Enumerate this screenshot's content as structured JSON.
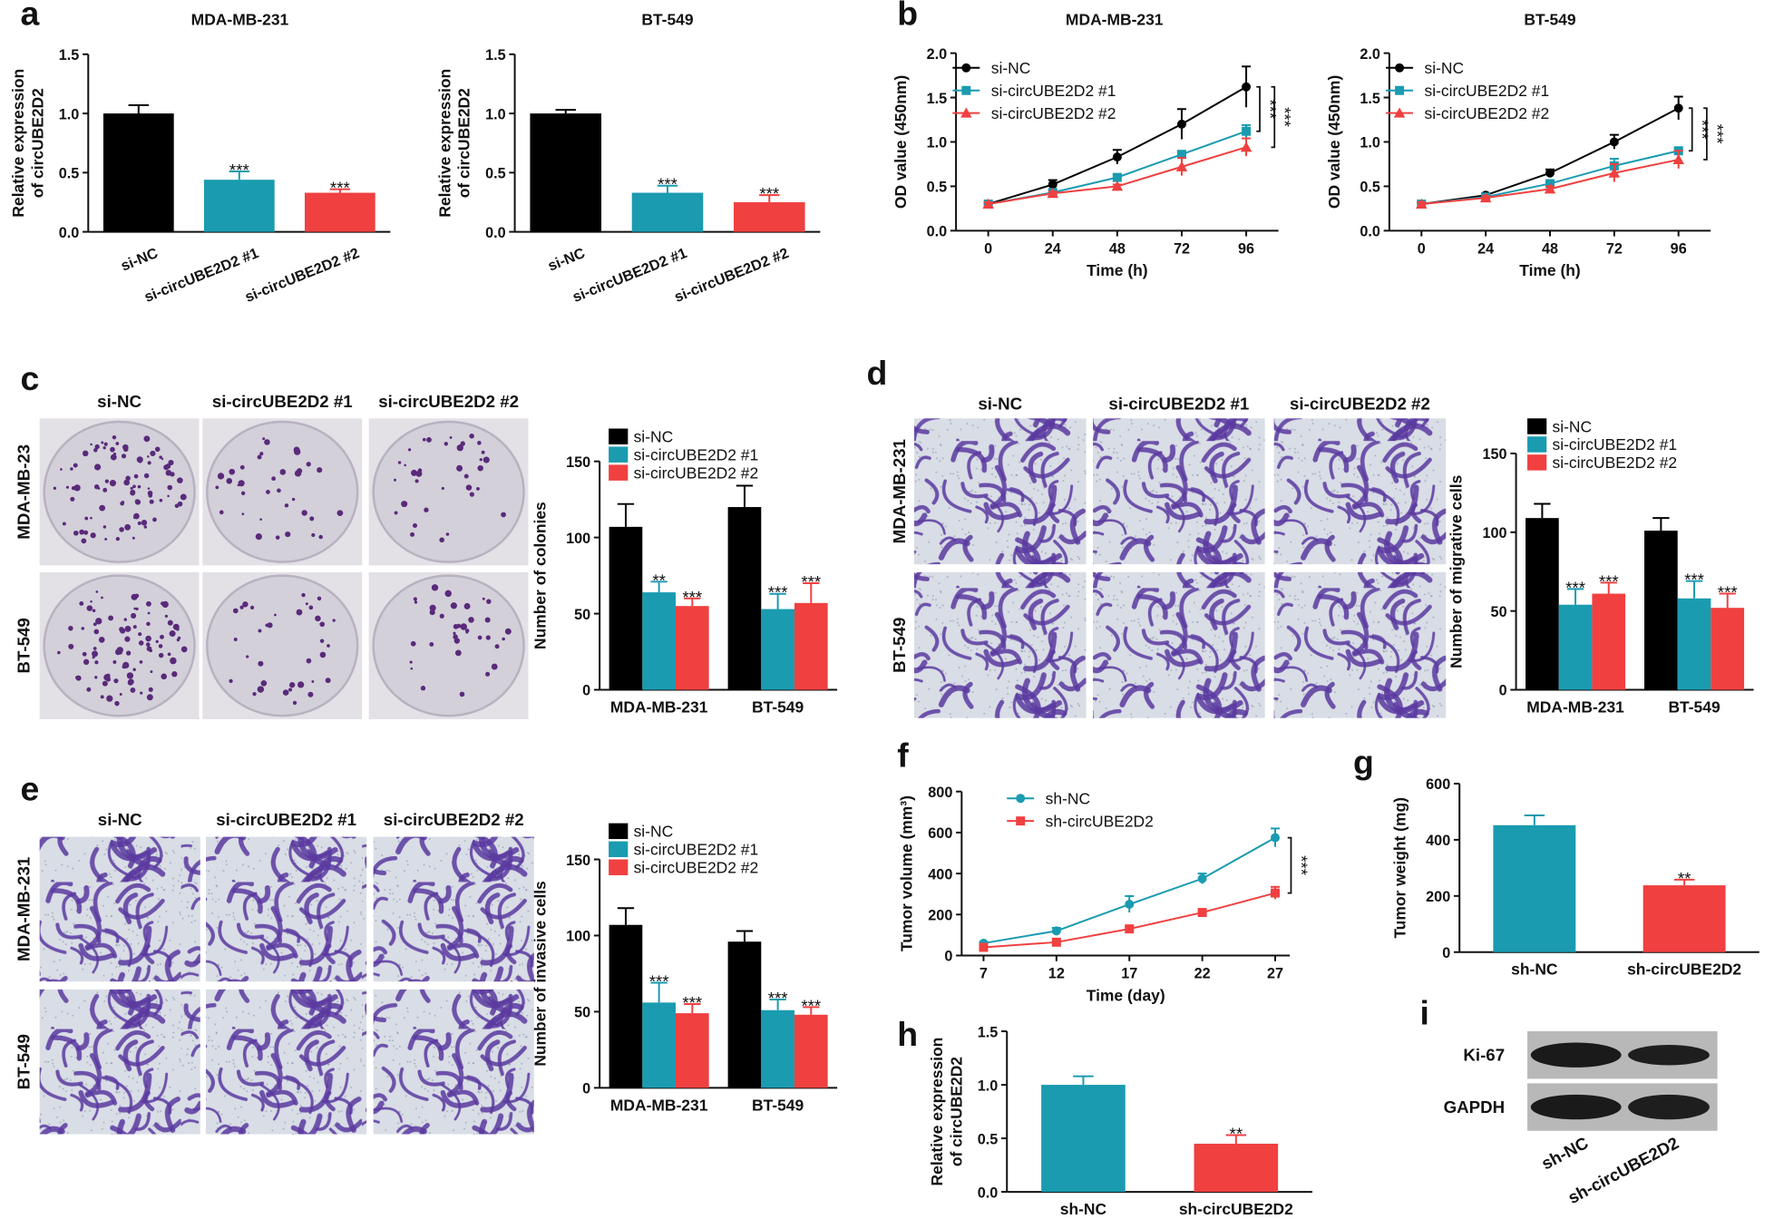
{
  "chart_data": [
    {
      "type": "bar",
      "title": "MDA-MB-231",
      "ylabel": [
        "Relative expression",
        "of circUBE2D2"
      ],
      "categories": [
        "si-NC",
        "si-circUBE2D2 #1",
        "si-circUBE2D2 #2"
      ],
      "values": [
        1.0,
        0.44,
        0.33
      ],
      "errors": [
        0.07,
        0.07,
        0.03
      ],
      "colors": [
        "#000000",
        "#1a9bb0",
        "#f04040"
      ],
      "significance": [
        null,
        "***",
        "***"
      ],
      "ylim": [
        0,
        1.5
      ],
      "yticks": [
        {
          "value": 0,
          "label": "0.0"
        },
        0.5,
        {
          "value": 1,
          "label": "1.0"
        },
        1.5
      ]
    },
    {
      "type": "bar",
      "title": "BT-549",
      "ylabel": [
        "Relative expression",
        "of circUBE2D2"
      ],
      "categories": [
        "si-NC",
        "si-circUBE2D2 #1",
        "si-circUBE2D2 #2"
      ],
      "values": [
        1.0,
        0.33,
        0.25
      ],
      "errors": [
        0.03,
        0.06,
        0.06
      ],
      "colors": [
        "#000000",
        "#1a9bb0",
        "#f04040"
      ],
      "significance": [
        null,
        "***",
        "***"
      ],
      "ylim": [
        0,
        1.5
      ],
      "yticks": [
        {
          "value": 0,
          "label": "0.0"
        },
        0.5,
        {
          "value": 1,
          "label": "1.0"
        },
        1.5
      ]
    },
    {
      "type": "line",
      "title": "MDA-MB-231",
      "xlabel": "Time (h)",
      "ylabel": "OD value (450nm)",
      "x": [
        0,
        24,
        48,
        72,
        96
      ],
      "xlim": [
        -12,
        108
      ],
      "xticks": [
        0,
        24,
        48,
        72,
        96
      ],
      "ylim": [
        0,
        2
      ],
      "yticks": [
        {
          "value": 0,
          "label": "0.0"
        },
        0.5,
        {
          "value": 1,
          "label": "1.0"
        },
        1.5,
        {
          "value": 2,
          "label": "2.0"
        }
      ],
      "series": [
        {
          "name": "si-NC",
          "color": "#000000",
          "marker": "circle",
          "values": [
            0.3,
            0.52,
            0.83,
            1.2,
            1.62
          ],
          "errors": [
            0.02,
            0.05,
            0.08,
            0.17,
            0.23
          ]
        },
        {
          "name": "si-circUBE2D2 #1",
          "color": "#1a9bb0",
          "marker": "square",
          "values": [
            0.3,
            0.43,
            0.6,
            0.86,
            1.12
          ],
          "errors": [
            0.02,
            0.03,
            0.03,
            0.03,
            0.07
          ]
        },
        {
          "name": "si-circUBE2D2 #2",
          "color": "#f04040",
          "marker": "triangle",
          "values": [
            0.3,
            0.42,
            0.5,
            0.72,
            0.94
          ],
          "errors": [
            0.02,
            0.02,
            0.02,
            0.1,
            0.1
          ]
        }
      ],
      "annotations": [
        "***",
        "***"
      ]
    },
    {
      "type": "line",
      "title": "BT-549",
      "xlabel": "Time (h)",
      "ylabel": "OD value (450nm)",
      "x": [
        0,
        24,
        48,
        72,
        96
      ],
      "xlim": [
        -12,
        108
      ],
      "xticks": [
        0,
        24,
        48,
        72,
        96
      ],
      "ylim": [
        0,
        2
      ],
      "yticks": [
        {
          "value": 0,
          "label": "0.0"
        },
        0.5,
        {
          "value": 1,
          "label": "1.0"
        },
        1.5,
        {
          "value": 2,
          "label": "2.0"
        }
      ],
      "series": [
        {
          "name": "si-NC",
          "color": "#000000",
          "marker": "circle",
          "values": [
            0.3,
            0.4,
            0.65,
            1.0,
            1.38
          ],
          "errors": [
            0.02,
            0.02,
            0.04,
            0.08,
            0.13
          ]
        },
        {
          "name": "si-circUBE2D2 #1",
          "color": "#1a9bb0",
          "marker": "square",
          "values": [
            0.3,
            0.38,
            0.53,
            0.73,
            0.9
          ],
          "errors": [
            0.02,
            0.02,
            0.03,
            0.08,
            0.03
          ]
        },
        {
          "name": "si-circUBE2D2 #2",
          "color": "#f04040",
          "marker": "triangle",
          "values": [
            0.3,
            0.37,
            0.47,
            0.65,
            0.8
          ],
          "errors": [
            0.02,
            0.02,
            0.03,
            0.1,
            0.1
          ]
        }
      ],
      "annotations": [
        "***",
        "***"
      ]
    },
    {
      "type": "bar",
      "ylabel": [
        "Number of colonies"
      ],
      "categories": [
        "MDA-MB-231",
        "BT-549"
      ],
      "ylim": [
        0,
        150
      ],
      "yticks": [
        0,
        50,
        100,
        150
      ],
      "series": [
        {
          "name": "si-NC",
          "color": "#000000",
          "values": [
            107,
            120
          ],
          "errors": [
            15,
            14
          ],
          "significance": [
            null,
            null
          ]
        },
        {
          "name": "si-circUBE2D2 #1",
          "color": "#1a9bb0",
          "values": [
            64,
            53
          ],
          "errors": [
            7,
            10
          ],
          "significance": [
            "**",
            "***"
          ]
        },
        {
          "name": "si-circUBE2D2 #2",
          "color": "#f04040",
          "values": [
            55,
            57
          ],
          "errors": [
            5,
            13
          ],
          "significance": [
            "***",
            "***"
          ]
        }
      ]
    },
    {
      "type": "bar",
      "ylabel": [
        "Number of migrative cells"
      ],
      "categories": [
        "MDA-MB-231",
        "BT-549"
      ],
      "ylim": [
        0,
        150
      ],
      "yticks": [
        0,
        50,
        100,
        150
      ],
      "series": [
        {
          "name": "si-NC",
          "color": "#000000",
          "values": [
            109,
            101
          ],
          "errors": [
            9,
            8
          ],
          "significance": [
            null,
            null
          ]
        },
        {
          "name": "si-circUBE2D2 #1",
          "color": "#1a9bb0",
          "values": [
            54,
            58
          ],
          "errors": [
            10,
            11
          ],
          "significance": [
            "***",
            "***"
          ]
        },
        {
          "name": "si-circUBE2D2 #2",
          "color": "#f04040",
          "values": [
            61,
            52
          ],
          "errors": [
            7,
            9
          ],
          "significance": [
            "***",
            "***"
          ]
        }
      ]
    },
    {
      "type": "bar",
      "ylabel": [
        "Number of invasive cells"
      ],
      "categories": [
        "MDA-MB-231",
        "BT-549"
      ],
      "ylim": [
        0,
        150
      ],
      "yticks": [
        0,
        50,
        100,
        150
      ],
      "series": [
        {
          "name": "si-NC",
          "color": "#000000",
          "values": [
            107,
            96
          ],
          "errors": [
            11,
            7
          ],
          "significance": [
            null,
            null
          ]
        },
        {
          "name": "si-circUBE2D2 #1",
          "color": "#1a9bb0",
          "values": [
            56,
            51
          ],
          "errors": [
            13,
            7
          ],
          "significance": [
            "***",
            "***"
          ]
        },
        {
          "name": "si-circUBE2D2 #2",
          "color": "#f04040",
          "values": [
            49,
            48
          ],
          "errors": [
            6,
            5
          ],
          "significance": [
            "***",
            "***"
          ]
        }
      ]
    },
    {
      "type": "line",
      "xlabel": "Time (day)",
      "ylabel": "Tumor volume (mm³)",
      "x": [
        7,
        12,
        17,
        22,
        27
      ],
      "xlim": [
        5.5,
        28
      ],
      "xticks": [
        7,
        12,
        17,
        22,
        27
      ],
      "ylim": [
        0,
        800
      ],
      "yticks": [
        0,
        200,
        400,
        600,
        800
      ],
      "series": [
        {
          "name": "sh-NC",
          "color": "#1a9bb0",
          "marker": "circle",
          "values": [
            60,
            120,
            250,
            375,
            575
          ],
          "errors": [
            5,
            15,
            40,
            25,
            45
          ]
        },
        {
          "name": "sh-circUBE2D2",
          "color": "#f04040",
          "marker": "square",
          "values": [
            40,
            65,
            130,
            210,
            305
          ],
          "errors": [
            5,
            5,
            10,
            10,
            30
          ]
        }
      ],
      "annotations": [
        "***"
      ]
    },
    {
      "type": "bar",
      "ylabel": [
        "Tumor weight (mg)"
      ],
      "categories": [
        "sh-NC",
        "sh-circUBE2D2"
      ],
      "values": [
        452,
        238
      ],
      "errors": [
        35,
        20
      ],
      "colors": [
        "#1a9bb0",
        "#f04040"
      ],
      "significance": [
        null,
        "**"
      ],
      "ylim": [
        0,
        600
      ],
      "yticks": [
        0,
        200,
        400,
        600
      ]
    },
    {
      "type": "bar",
      "ylabel": [
        "Relative expression",
        "of circUBE2D2"
      ],
      "categories": [
        "sh-NC",
        "sh-circUBE2D2"
      ],
      "values": [
        1.0,
        0.45
      ],
      "errors": [
        0.08,
        0.08
      ],
      "colors": [
        "#1a9bb0",
        "#f04040"
      ],
      "significance": [
        null,
        "**"
      ],
      "ylim": [
        0,
        1.5
      ],
      "yticks": [
        {
          "value": 0,
          "label": "0.0"
        },
        0.5,
        {
          "value": 1,
          "label": "1.0"
        },
        1.5
      ]
    }
  ],
  "panel_labels": [
    "a",
    "b",
    "c",
    "d",
    "e",
    "f",
    "g",
    "h",
    "i"
  ],
  "images": {
    "c": {
      "columns": [
        "si-NC",
        "si-circUBE2D2 #1",
        "si-circUBE2D2 #2"
      ],
      "rows": [
        "MDA-MB-23",
        "BT-549"
      ]
    },
    "d": {
      "columns": [
        "si-NC",
        "si-circUBE2D2 #1",
        "si-circUBE2D2 #2"
      ],
      "rows": [
        "MDA-MB-231",
        "BT-549"
      ]
    },
    "e": {
      "columns": [
        "si-NC",
        "si-circUBE2D2 #1",
        "si-circUBE2D2 #2"
      ],
      "rows": [
        "MDA-MB-231",
        "BT-549"
      ]
    }
  },
  "blot": {
    "bands": [
      "Ki-67",
      "GAPDH"
    ],
    "lanes": [
      "sh-NC",
      "sh-circUBE2D2"
    ]
  }
}
